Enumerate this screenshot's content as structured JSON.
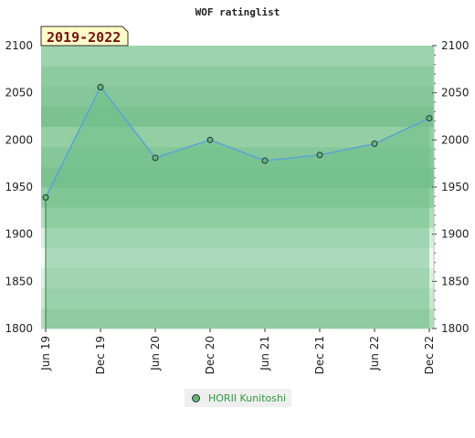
{
  "chart_data": {
    "type": "area",
    "title": "WOF ratinglist",
    "period_badge": "2019-2022",
    "x": [
      "Jun 19",
      "Dec 19",
      "Jun 20",
      "Dec 20",
      "Jun 21",
      "Dec 21",
      "Jun 22",
      "Dec 22"
    ],
    "series": [
      {
        "name": "HORII Kunitoshi",
        "values": [
          1939,
          2056,
          1981,
          2000,
          1978,
          1984,
          1996,
          2023
        ]
      }
    ],
    "ylim": [
      1800,
      2100
    ],
    "yticks": [
      1800,
      1850,
      1900,
      1950,
      2000,
      2050,
      2100
    ],
    "y_axis_both_sides": true,
    "grid": false,
    "legend_position": "bottom-center",
    "colors": {
      "line": "#5aa3d8",
      "area_fill": "#6fbf88",
      "marker": "#66b870",
      "marker_edge": "#223344",
      "legend_text": "#2a9d3e",
      "badge_bg": "#fffbc8",
      "badge_text": "#7a1010",
      "background_bands": [
        "#9ed4ad",
        "#8ccb9e",
        "#86c799",
        "#7cc290",
        "#93cfa3",
        "#86c799",
        "#7cc290",
        "#92cea2",
        "#b0dfbd",
        "#d9f0df",
        "#f3faf5",
        "#dbf0e1",
        "#c9e8d2",
        "#b3dcbd"
      ]
    }
  }
}
